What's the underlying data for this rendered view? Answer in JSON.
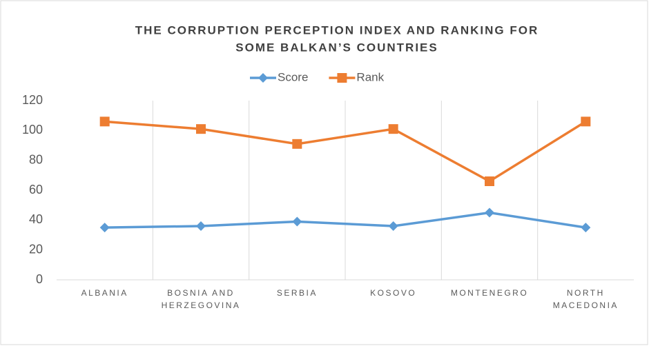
{
  "chart_data": {
    "type": "line",
    "title": [
      "THE CORRUPTION PERCEPTION INDEX AND RANKING FOR",
      "SOME BALKAN’S COUNTRIES"
    ],
    "categories": [
      "ALBANIA",
      "BOSNIA AND HERZEGOVINA",
      "SERBIA",
      "KOSOVO",
      "MONTENEGRO",
      "NORTH MACEDONIA"
    ],
    "series": [
      {
        "name": "Score",
        "color": "#5b9bd5",
        "marker": "diamond",
        "values": [
          35,
          36,
          39,
          36,
          45,
          35
        ]
      },
      {
        "name": "Rank",
        "color": "#ed7d31",
        "marker": "square",
        "values": [
          106,
          101,
          91,
          101,
          66,
          106
        ]
      }
    ],
    "ylim": [
      0,
      120
    ],
    "yticks": [
      0,
      20,
      40,
      60,
      80,
      100,
      120
    ],
    "grid": "vertical",
    "legend": "top"
  }
}
